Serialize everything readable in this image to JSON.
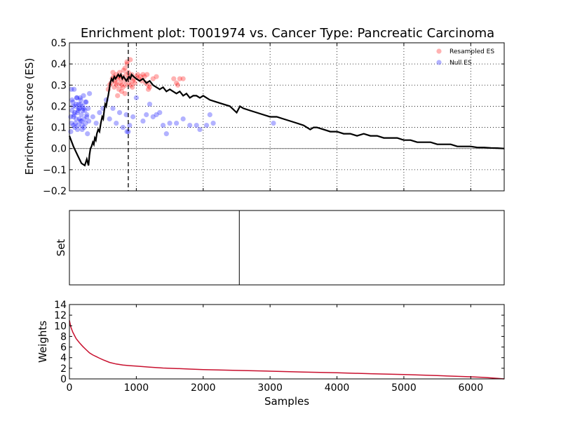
{
  "chart_data": {
    "type": "line",
    "title": "Enrichment plot: T001974 vs. Cancer Type: Pancreatic Carcinoma",
    "legend_position": "top-right",
    "colors": {
      "es_line": "#000000",
      "resampled": "#ff0000",
      "null": "#0000ff",
      "weights": "#c8102e",
      "set_line": "#000000"
    },
    "panels": [
      {
        "id": "es",
        "type": "line+scatter",
        "ylabel": "Enrichment score (ES)",
        "xlim": [
          0,
          6500
        ],
        "ylim": [
          -0.2,
          0.5
        ],
        "grid": true,
        "xticks": [
          0,
          1000,
          2000,
          3000,
          4000,
          5000,
          6000
        ],
        "yticks": [
          "−0.2",
          "−0.1",
          "0.0",
          "0.1",
          "0.2",
          "0.3",
          "0.4",
          "0.5"
        ],
        "ytick_values": [
          -0.2,
          -0.1,
          0.0,
          0.1,
          0.2,
          0.3,
          0.4,
          0.5
        ],
        "peak_marker_x": 880,
        "series": [
          {
            "name": "ES",
            "kind": "line",
            "x": [
              0,
              60,
              120,
              180,
              230,
              260,
              285,
              300,
              315,
              330,
              350,
              365,
              380,
              395,
              410,
              430,
              450,
              470,
              490,
              505,
              520,
              535,
              550,
              565,
              580,
              595,
              610,
              630,
              650,
              670,
              690,
              710,
              730,
              750,
              770,
              790,
              810,
              830,
              850,
              870,
              890,
              910,
              930,
              960,
              1000,
              1050,
              1100,
              1150,
              1200,
              1250,
              1300,
              1350,
              1400,
              1450,
              1500,
              1550,
              1600,
              1650,
              1700,
              1750,
              1800,
              1850,
              1900,
              1950,
              2000,
              2100,
              2200,
              2300,
              2400,
              2500,
              2550,
              2600,
              2700,
              2800,
              2900,
              3000,
              3100,
              3200,
              3300,
              3400,
              3500,
              3600,
              3650,
              3700,
              3800,
              3900,
              4000,
              4100,
              4200,
              4300,
              4400,
              4500,
              4600,
              4700,
              4800,
              4900,
              5000,
              5100,
              5200,
              5300,
              5400,
              5500,
              5600,
              5700,
              5800,
              5900,
              6000,
              6100,
              6200,
              6300,
              6400,
              6500
            ],
            "y": [
              0.06,
              0.01,
              -0.03,
              -0.07,
              -0.08,
              -0.05,
              -0.08,
              -0.03,
              0.0,
              0.01,
              0.03,
              0.02,
              0.05,
              0.04,
              0.07,
              0.09,
              0.08,
              0.12,
              0.15,
              0.14,
              0.18,
              0.21,
              0.2,
              0.23,
              0.25,
              0.28,
              0.31,
              0.33,
              0.32,
              0.34,
              0.33,
              0.34,
              0.35,
              0.34,
              0.35,
              0.33,
              0.34,
              0.33,
              0.32,
              0.33,
              0.34,
              0.33,
              0.35,
              0.34,
              0.33,
              0.32,
              0.33,
              0.31,
              0.32,
              0.3,
              0.29,
              0.28,
              0.29,
              0.27,
              0.28,
              0.27,
              0.26,
              0.27,
              0.25,
              0.26,
              0.24,
              0.25,
              0.25,
              0.24,
              0.25,
              0.23,
              0.22,
              0.21,
              0.2,
              0.17,
              0.2,
              0.19,
              0.18,
              0.17,
              0.16,
              0.15,
              0.15,
              0.14,
              0.13,
              0.12,
              0.11,
              0.09,
              0.1,
              0.1,
              0.09,
              0.08,
              0.08,
              0.07,
              0.07,
              0.06,
              0.07,
              0.06,
              0.06,
              0.05,
              0.05,
              0.05,
              0.04,
              0.04,
              0.03,
              0.03,
              0.03,
              0.02,
              0.02,
              0.02,
              0.01,
              0.01,
              0.01,
              0.005,
              0.005,
              0.003,
              0.002,
              0.0
            ]
          },
          {
            "name": "Resampled ES",
            "kind": "scatter",
            "x": [
              580,
              600,
              620,
              640,
              650,
              660,
              670,
              680,
              690,
              700,
              710,
              720,
              730,
              740,
              750,
              760,
              770,
              780,
              790,
              800,
              810,
              820,
              830,
              840,
              850,
              860,
              870,
              880,
              890,
              900,
              910,
              920,
              930,
              940,
              950,
              960,
              980,
              1000,
              1020,
              1040,
              1060,
              1080,
              1100,
              1120,
              1140,
              1160,
              1180,
              1200,
              1250,
              1300,
              1560,
              1600,
              1650,
              1700,
              1620,
              1180,
              780,
              830,
              860,
              720
            ],
            "y": [
              0.28,
              0.3,
              0.31,
              0.33,
              0.36,
              0.34,
              0.29,
              0.32,
              0.31,
              0.35,
              0.3,
              0.33,
              0.34,
              0.28,
              0.36,
              0.31,
              0.33,
              0.3,
              0.34,
              0.29,
              0.37,
              0.32,
              0.38,
              0.3,
              0.35,
              0.41,
              0.33,
              0.36,
              0.31,
              0.34,
              0.42,
              0.3,
              0.35,
              0.29,
              0.32,
              0.33,
              0.31,
              0.34,
              0.35,
              0.33,
              0.34,
              0.32,
              0.35,
              0.34,
              0.31,
              0.35,
              0.3,
              0.29,
              0.33,
              0.34,
              0.33,
              0.31,
              0.33,
              0.33,
              0.3,
              0.28,
              0.27,
              0.26,
              0.4,
              0.25
            ]
          },
          {
            "name": "Null ES",
            "kind": "scatter",
            "x": [
              20,
              30,
              40,
              50,
              60,
              70,
              80,
              90,
              100,
              110,
              120,
              130,
              140,
              150,
              160,
              170,
              180,
              190,
              200,
              210,
              220,
              230,
              240,
              250,
              260,
              270,
              280,
              290,
              300,
              20,
              40,
              60,
              80,
              100,
              120,
              140,
              160,
              180,
              200,
              220,
              240,
              260,
              30,
              50,
              70,
              90,
              110,
              130,
              150,
              170,
              190,
              210,
              350,
              400,
              450,
              500,
              550,
              600,
              650,
              700,
              750,
              800,
              850,
              900,
              950,
              1000,
              1100,
              1150,
              1200,
              1250,
              1300,
              1350,
              1400,
              1450,
              1500,
              1600,
              1700,
              1800,
              1900,
              1950,
              2050,
              2100,
              2150,
              3050,
              860,
              880
            ],
            "y": [
              0.08,
              0.12,
              0.18,
              0.22,
              0.15,
              0.28,
              0.1,
              0.2,
              0.14,
              0.24,
              0.17,
              0.11,
              0.21,
              0.19,
              0.13,
              0.23,
              0.16,
              0.09,
              0.2,
              0.25,
              0.14,
              0.18,
              0.12,
              0.22,
              0.16,
              0.07,
              0.19,
              0.13,
              0.26,
              0.15,
              0.23,
              0.11,
              0.17,
              0.21,
              0.09,
              0.19,
              0.24,
              0.13,
              0.18,
              0.1,
              0.22,
              0.15,
              0.28,
              0.2,
              0.16,
              0.12,
              0.24,
              0.18,
              0.14,
              0.21,
              0.11,
              0.19,
              0.15,
              0.12,
              0.17,
              0.19,
              0.23,
              0.14,
              0.19,
              0.12,
              0.17,
              0.1,
              0.16,
              0.11,
              0.15,
              0.24,
              0.13,
              0.16,
              0.21,
              0.15,
              0.16,
              0.17,
              0.11,
              0.07,
              0.12,
              0.12,
              0.14,
              0.11,
              0.11,
              0.09,
              0.11,
              0.16,
              0.12,
              0.12,
              0.08,
              0.08
            ]
          }
        ]
      },
      {
        "id": "set",
        "type": "event",
        "ylabel": "Set",
        "xlim": [
          0,
          6500
        ],
        "events": [
          2540
        ]
      },
      {
        "id": "weights",
        "type": "line",
        "ylabel": "Weights",
        "xlabel": "Samples",
        "xlim": [
          0,
          6500
        ],
        "ylim": [
          0,
          14
        ],
        "xticks": [
          0,
          1000,
          2000,
          3000,
          4000,
          5000,
          6000
        ],
        "yticks": [
          "0",
          "2",
          "4",
          "6",
          "8",
          "10",
          "12",
          "14"
        ],
        "ytick_values": [
          0,
          2,
          4,
          6,
          8,
          10,
          12,
          14
        ],
        "series": [
          {
            "name": "Weights",
            "x": [
              0,
              20,
              50,
              100,
              150,
              200,
              250,
              300,
              350,
              400,
              450,
              500,
              600,
              700,
              800,
              900,
              1000,
              1200,
              1400,
              1600,
              1800,
              2000,
              2500,
              3000,
              3500,
              4000,
              4500,
              5000,
              5500,
              6000,
              6200,
              6400,
              6500
            ],
            "y": [
              11.0,
              9.8,
              8.8,
              7.6,
              6.8,
              6.1,
              5.5,
              4.9,
              4.5,
              4.2,
              3.9,
              3.6,
              3.1,
              2.8,
              2.6,
              2.5,
              2.4,
              2.2,
              2.05,
              1.95,
              1.85,
              1.75,
              1.6,
              1.45,
              1.3,
              1.15,
              0.98,
              0.82,
              0.62,
              0.4,
              0.28,
              0.1,
              0.0
            ]
          }
        ]
      }
    ]
  }
}
